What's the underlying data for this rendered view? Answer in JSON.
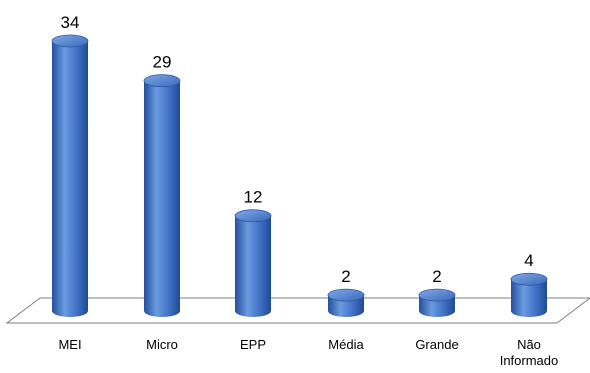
{
  "chart_data": {
    "type": "bar",
    "categories": [
      "MEI",
      "Micro",
      "EPP",
      "Média",
      "Grande",
      "Não Informado"
    ],
    "category_lines": [
      [
        "MEI"
      ],
      [
        "Micro"
      ],
      [
        "EPP"
      ],
      [
        "Média"
      ],
      [
        "Grande"
      ],
      [
        "Não",
        "Informado"
      ]
    ],
    "values": [
      34,
      29,
      12,
      2,
      2,
      4
    ],
    "title": "",
    "xlabel": "",
    "ylabel": "",
    "ylim": [
      0,
      34
    ],
    "grid": false,
    "legend": "none",
    "style": "3d-cylinder",
    "colors": {
      "bar_light": "#6a9ae0",
      "bar_mid": "#3f70c4",
      "bar_dark": "#1f4a94",
      "floor_stroke": "#7f7f7f"
    }
  }
}
